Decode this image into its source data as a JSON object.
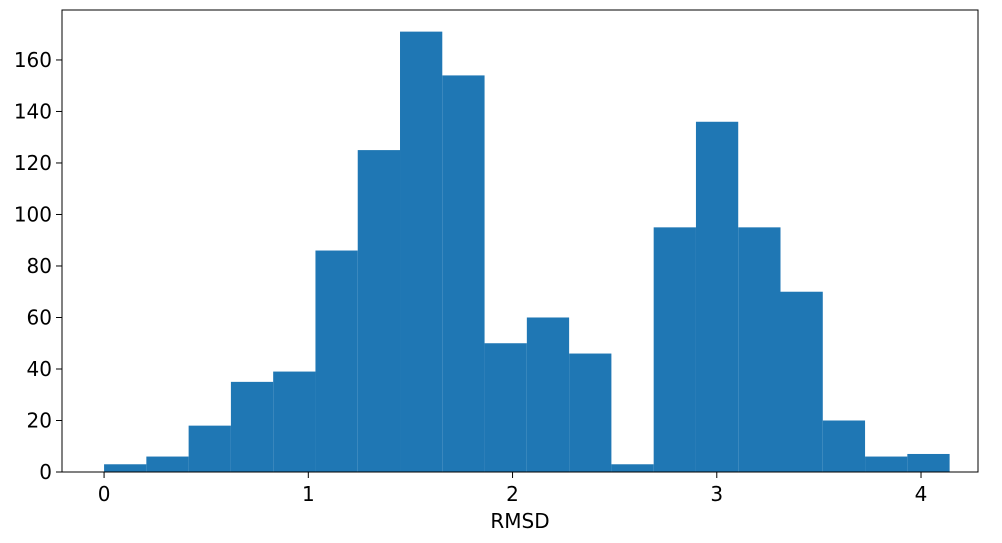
{
  "chart_data": {
    "type": "histogram",
    "xlabel": "RMSD",
    "bins": [
      0,
      0.207,
      0.414,
      0.621,
      0.828,
      1.035,
      1.242,
      1.449,
      1.656,
      1.863,
      2.07,
      2.277,
      2.484,
      2.691,
      2.898,
      3.105,
      3.312,
      3.519,
      3.726,
      3.933,
      4.14
    ],
    "values": [
      3,
      6,
      18,
      35,
      39,
      86,
      125,
      171,
      154,
      50,
      60,
      46,
      3,
      95,
      136,
      95,
      70,
      20,
      6,
      7
    ],
    "color": "#1f77b4",
    "xlim": [
      -0.206,
      4.279
    ],
    "xticks": [
      0,
      1,
      2,
      3,
      4
    ],
    "ylim": [
      0,
      179.4
    ],
    "yticks": [
      0,
      20,
      40,
      60,
      80,
      100,
      120,
      140,
      160
    ],
    "grid": false
  }
}
